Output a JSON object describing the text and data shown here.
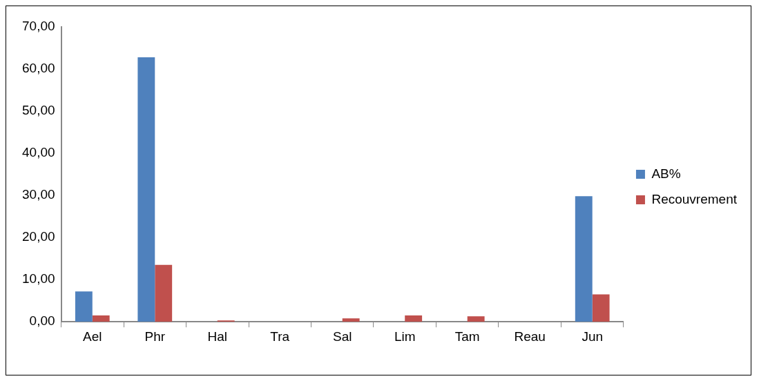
{
  "chart_data": {
    "type": "bar",
    "categories": [
      "Ael",
      "Phr",
      "Hal",
      "Tra",
      "Sal",
      "Lim",
      "Tam",
      "Reau",
      "Jun"
    ],
    "series": [
      {
        "name": "AB%",
        "color": "#4f81bd",
        "values": [
          7.2,
          62.8,
          0,
          0,
          0,
          0,
          0,
          0,
          29.8
        ]
      },
      {
        "name": "Recouvrement",
        "color": "#c0504d",
        "values": [
          1.5,
          13.5,
          0.3,
          0,
          0.8,
          1.5,
          1.3,
          0,
          6.5
        ]
      }
    ],
    "ylim": [
      0,
      70
    ],
    "yticks": [
      {
        "value": 0,
        "label": "0,00"
      },
      {
        "value": 10,
        "label": "10,00"
      },
      {
        "value": 20,
        "label": "20,00"
      },
      {
        "value": 30,
        "label": "30,00"
      },
      {
        "value": 40,
        "label": "40,00"
      },
      {
        "value": 50,
        "label": "50,00"
      },
      {
        "value": 60,
        "label": "60,00"
      },
      {
        "value": 70,
        "label": "70,00"
      }
    ],
    "grid": false,
    "legend": "right"
  }
}
